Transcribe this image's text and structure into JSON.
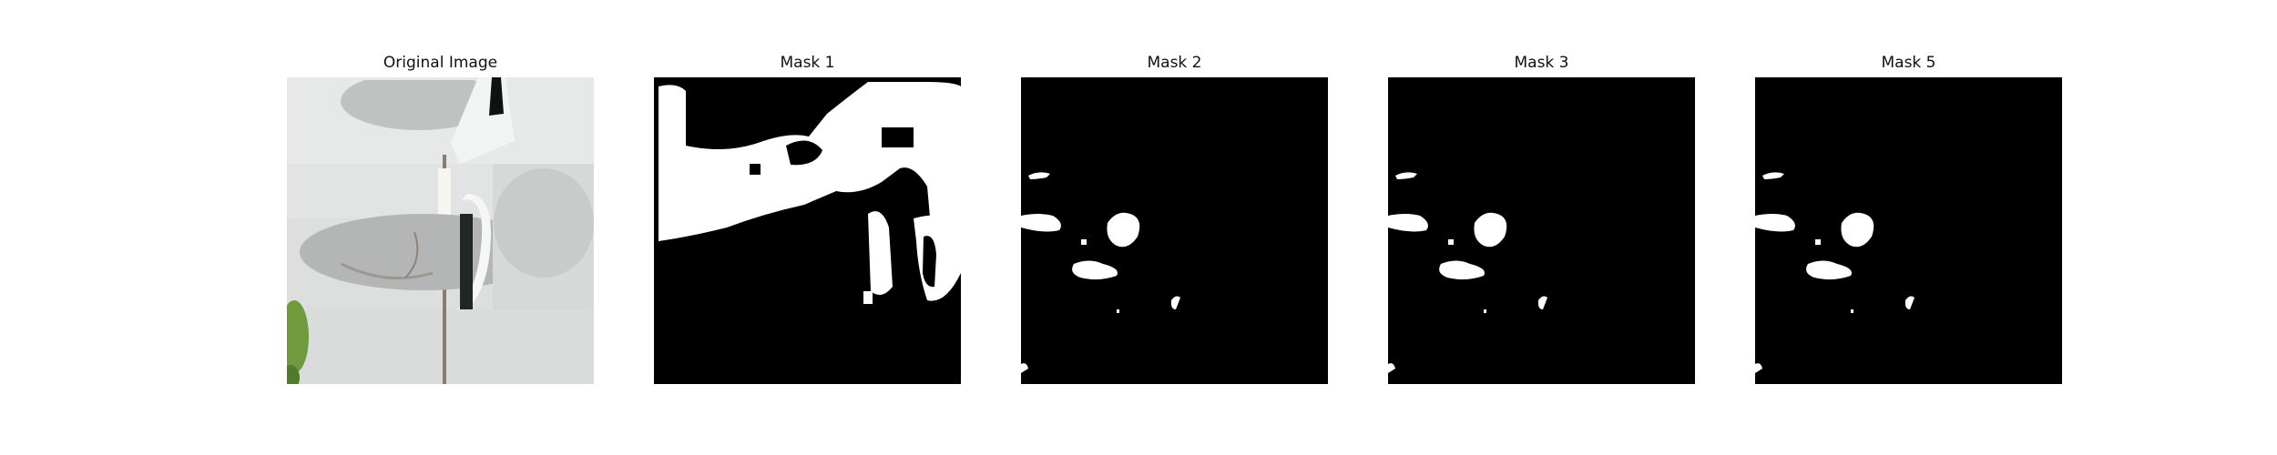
{
  "figure": {
    "panels": [
      {
        "title": "Original Image"
      },
      {
        "title": "Mask 1"
      },
      {
        "title": "Mask 2"
      },
      {
        "title": "Mask 3"
      },
      {
        "title": "Mask 5"
      }
    ]
  },
  "colors": {
    "background": "#ffffff",
    "mask_foreground": "#ffffff",
    "mask_background": "#000000",
    "photo_wall": "#dfe3e1",
    "photo_bowl": "#b9bcba",
    "photo_seam": "#8a7d70",
    "photo_leaf": "#6f9b3c"
  }
}
